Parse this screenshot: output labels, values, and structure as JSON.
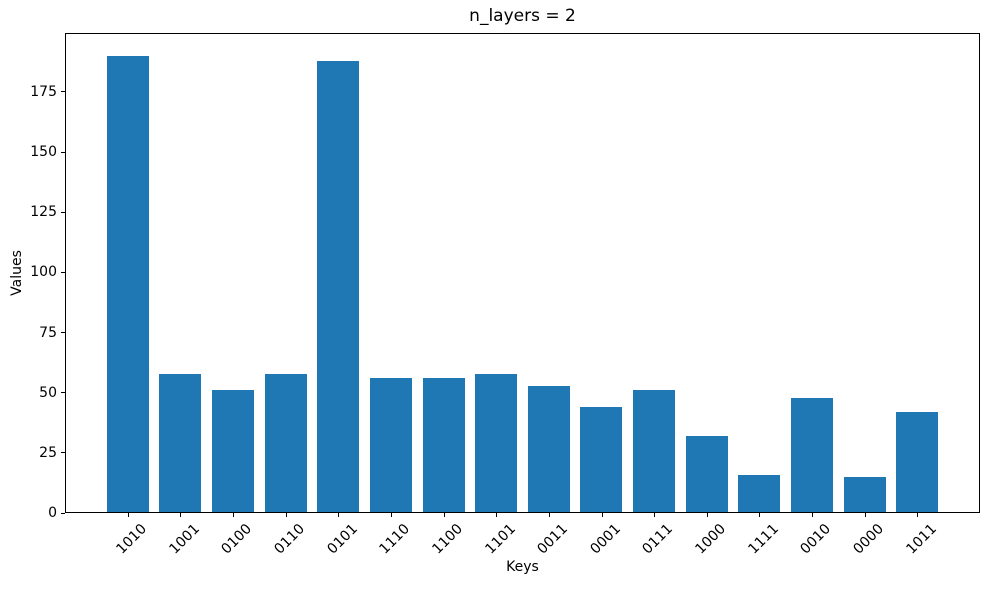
{
  "figure": {
    "background": "#ffffff",
    "spine_color": "#000000"
  },
  "chart_data": {
    "type": "bar",
    "title": "n_layers = 2",
    "xlabel": "Keys",
    "ylabel": "Values",
    "categories": [
      "1010",
      "1001",
      "0100",
      "0110",
      "0101",
      "1110",
      "1100",
      "1101",
      "0011",
      "0001",
      "0111",
      "1000",
      "1111",
      "0010",
      "0000",
      "1011"
    ],
    "values": [
      190,
      58,
      51,
      58,
      188,
      56,
      56,
      58,
      53,
      44,
      51,
      32,
      16,
      48,
      15,
      42
    ],
    "yticks": [
      0,
      25,
      50,
      75,
      100,
      125,
      150,
      175
    ],
    "ylim": [
      0,
      199.5
    ],
    "xtick_rotation_deg": 45,
    "bar_color": "#1f77b4",
    "grid": false,
    "legend_visible": false
  }
}
